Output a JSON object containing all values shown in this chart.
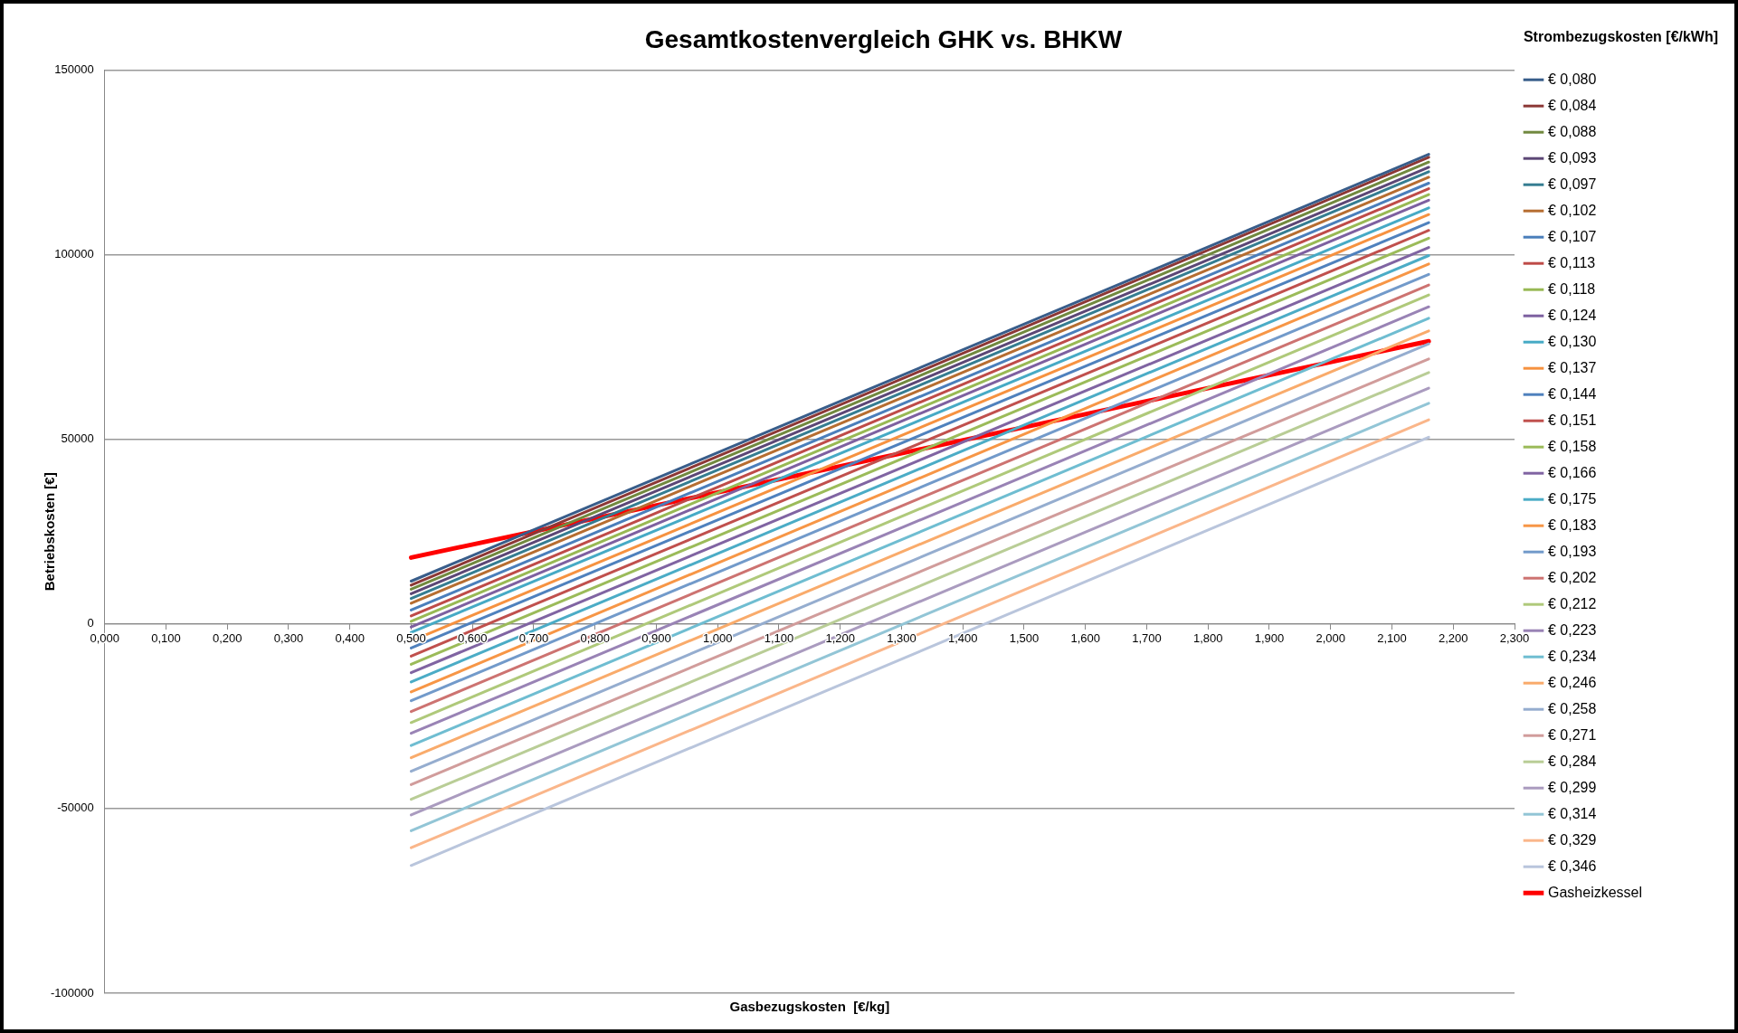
{
  "chart_data": {
    "type": "line",
    "title": "Gesamtkostenvergleich GHK vs. BHKW",
    "xlabel": "Gasbezugskosten  [€/kg]",
    "ylabel": "Betriebskosten [€]",
    "legend_title": "Strombezugskosten [€/kWh]",
    "x": [
      0.5,
      2.16
    ],
    "xlim": [
      0,
      2.3
    ],
    "xticks": [
      {
        "value": 0,
        "label": "0,000"
      },
      {
        "value": 0.1,
        "label": "0,100"
      },
      {
        "value": 0.2,
        "label": "0,200"
      },
      {
        "value": 0.3,
        "label": "0,300"
      },
      {
        "value": 0.4,
        "label": "0,400"
      },
      {
        "value": 0.5,
        "label": "0,500"
      },
      {
        "value": 0.6,
        "label": "0,600"
      },
      {
        "value": 0.7,
        "label": "0,700"
      },
      {
        "value": 0.8,
        "label": "0,800"
      },
      {
        "value": 0.9,
        "label": "0,900"
      },
      {
        "value": 1.0,
        "label": "1,000"
      },
      {
        "value": 1.1,
        "label": "1,100"
      },
      {
        "value": 1.2,
        "label": "1,200"
      },
      {
        "value": 1.3,
        "label": "1,300"
      },
      {
        "value": 1.4,
        "label": "1,400"
      },
      {
        "value": 1.5,
        "label": "1,500"
      },
      {
        "value": 1.6,
        "label": "1,600"
      },
      {
        "value": 1.7,
        "label": "1,700"
      },
      {
        "value": 1.8,
        "label": "1,800"
      },
      {
        "value": 1.9,
        "label": "1,900"
      },
      {
        "value": 2.0,
        "label": "2,000"
      },
      {
        "value": 2.1,
        "label": "2,100"
      },
      {
        "value": 2.2,
        "label": "2,200"
      },
      {
        "value": 2.3,
        "label": "2,300"
      }
    ],
    "ylim": [
      -100000,
      150000
    ],
    "yticks": [
      -100000,
      -50000,
      0,
      50000,
      100000,
      150000
    ],
    "grid": "y",
    "legend": "right",
    "marker": "none",
    "line_style": "solid",
    "series": [
      {
        "name": "€ 0,080",
        "color": "#385d8a",
        "values": [
          11600,
          127200
        ]
      },
      {
        "name": "€ 0,084",
        "color": "#8c3836",
        "values": [
          10500,
          126400
        ]
      },
      {
        "name": "€ 0,088",
        "color": "#71893f",
        "values": [
          9400,
          125100
        ]
      },
      {
        "name": "€ 0,093",
        "color": "#5c4776",
        "values": [
          8200,
          123700
        ]
      },
      {
        "name": "€ 0,097",
        "color": "#357d91",
        "values": [
          6900,
          122500
        ]
      },
      {
        "name": "€ 0,102",
        "color": "#b66d31",
        "values": [
          5600,
          121000
        ]
      },
      {
        "name": "€ 0,107",
        "color": "#4a7ebb",
        "values": [
          3800,
          119400
        ]
      },
      {
        "name": "€ 0,113",
        "color": "#be4b48",
        "values": [
          2200,
          117900
        ]
      },
      {
        "name": "€ 0,118",
        "color": "#98b954",
        "values": [
          700,
          116300
        ]
      },
      {
        "name": "€ 0,124",
        "color": "#7d60a0",
        "values": [
          -800,
          114800
        ]
      },
      {
        "name": "€ 0,130",
        "color": "#46aac5",
        "values": [
          -2300,
          112700
        ]
      },
      {
        "name": "€ 0,137",
        "color": "#f69240",
        "values": [
          -4600,
          110900
        ]
      },
      {
        "name": "€ 0,144",
        "color": "#4f81bd",
        "values": [
          -6500,
          108700
        ]
      },
      {
        "name": "€ 0,151",
        "color": "#c0504d",
        "values": [
          -8700,
          106600
        ]
      },
      {
        "name": "€ 0,158",
        "color": "#9bbb59",
        "values": [
          -10900,
          104500
        ]
      },
      {
        "name": "€ 0,166",
        "color": "#8064a2",
        "values": [
          -13200,
          102000
        ]
      },
      {
        "name": "€ 0,175",
        "color": "#4bacc6",
        "values": [
          -15700,
          99800
        ]
      },
      {
        "name": "€ 0,183",
        "color": "#f79646",
        "values": [
          -18400,
          97500
        ]
      },
      {
        "name": "€ 0,193",
        "color": "#729aca",
        "values": [
          -20800,
          94700
        ]
      },
      {
        "name": "€ 0,202",
        "color": "#cd7371",
        "values": [
          -23700,
          91800
        ]
      },
      {
        "name": "€ 0,212",
        "color": "#afc97a",
        "values": [
          -26700,
          89100
        ]
      },
      {
        "name": "€ 0,223",
        "color": "#9983b5",
        "values": [
          -29600,
          85900
        ]
      },
      {
        "name": "€ 0,234",
        "color": "#6fbdd1",
        "values": [
          -32900,
          82800
        ]
      },
      {
        "name": "€ 0,246",
        "color": "#f9ab6b",
        "values": [
          -36200,
          79400
        ]
      },
      {
        "name": "€ 0,258",
        "color": "#95adcf",
        "values": [
          -39900,
          75900
        ]
      },
      {
        "name": "€ 0,271",
        "color": "#d19c9b",
        "values": [
          -43500,
          71800
        ]
      },
      {
        "name": "€ 0,284",
        "color": "#b9cd96",
        "values": [
          -47500,
          68100
        ]
      },
      {
        "name": "€ 0,299",
        "color": "#aa9bbf",
        "values": [
          -51700,
          63900
        ]
      },
      {
        "name": "€ 0,314",
        "color": "#92c5d6",
        "values": [
          -56000,
          59800
        ]
      },
      {
        "name": "€ 0,329",
        "color": "#fab68a",
        "values": [
          -60600,
          55300
        ]
      },
      {
        "name": "€ 0,346",
        "color": "#b9c5dc",
        "values": [
          -65400,
          50600
        ]
      },
      {
        "name": "Gasheizkessel",
        "color": "#ff0000",
        "values": [
          18000,
          76600
        ]
      }
    ]
  }
}
